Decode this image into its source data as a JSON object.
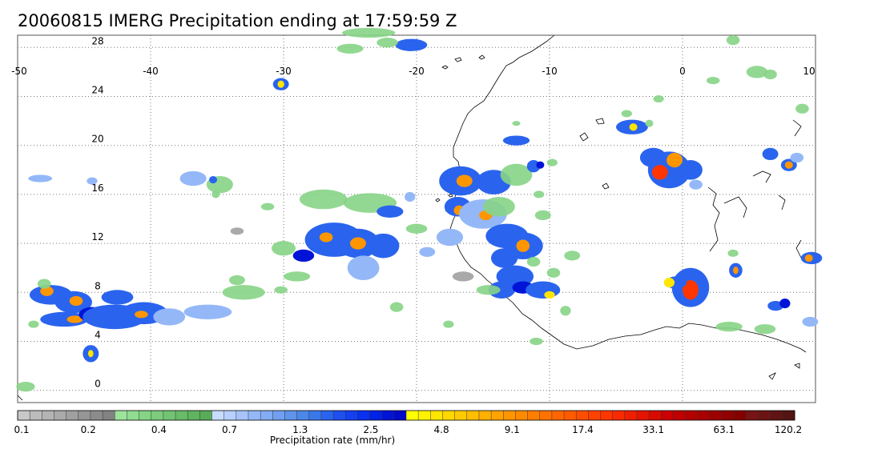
{
  "title": "20060815 IMERG Precipitation ending at 17:59:59 Z",
  "map": {
    "lon_labels": [
      "-50",
      "-40",
      "-30",
      "-20",
      "-10",
      "0",
      "10"
    ],
    "lat_labels": [
      "28",
      "24",
      "20",
      "16",
      "12",
      "8",
      "4",
      "0"
    ],
    "lon_range": [
      -50,
      10
    ],
    "lat_range": [
      -1,
      29
    ],
    "grid": true
  },
  "colorbar": {
    "title": "Precipitation rate (mm/hr)",
    "tick_labels": [
      "0.1",
      "0.2",
      "0.4",
      "0.7",
      "1.3",
      "2.5",
      "4.8",
      "9.1",
      "17.4",
      "33.1",
      "63.1",
      "120.2"
    ],
    "colors": [
      "#c8c8c8",
      "#bcbcbc",
      "#b4b4b4",
      "#aaaaaa",
      "#a0a0a0",
      "#969696",
      "#8c8c8c",
      "#828282",
      "#9ce49c",
      "#90dc90",
      "#86d486",
      "#7ccc7c",
      "#72c472",
      "#68bc68",
      "#60b460",
      "#58ac58",
      "#c8dcff",
      "#b8d0ff",
      "#a6c4fb",
      "#94b8f7",
      "#82acf3",
      "#70a0ef",
      "#5e94eb",
      "#4c88e7",
      "#3a78ea",
      "#2a64ee",
      "#1e50f0",
      "#1440f0",
      "#0a30f0",
      "#0022e8",
      "#0014d8",
      "#000ac8",
      "#ffff00",
      "#fff200",
      "#ffe600",
      "#ffd800",
      "#ffcb00",
      "#ffbe00",
      "#ffb000",
      "#ffa300",
      "#ff9600",
      "#ff8a00",
      "#ff7e00",
      "#ff7200",
      "#ff6600",
      "#ff5a00",
      "#ff4e00",
      "#ff4200",
      "#ff3600",
      "#f82a00",
      "#f01e00",
      "#e41400",
      "#d80a00",
      "#cc0000",
      "#c00000",
      "#b40000",
      "#a80000",
      "#9c0000",
      "#900000",
      "#840000",
      "#781414",
      "#6c1414",
      "#601414",
      "#541414"
    ]
  }
}
